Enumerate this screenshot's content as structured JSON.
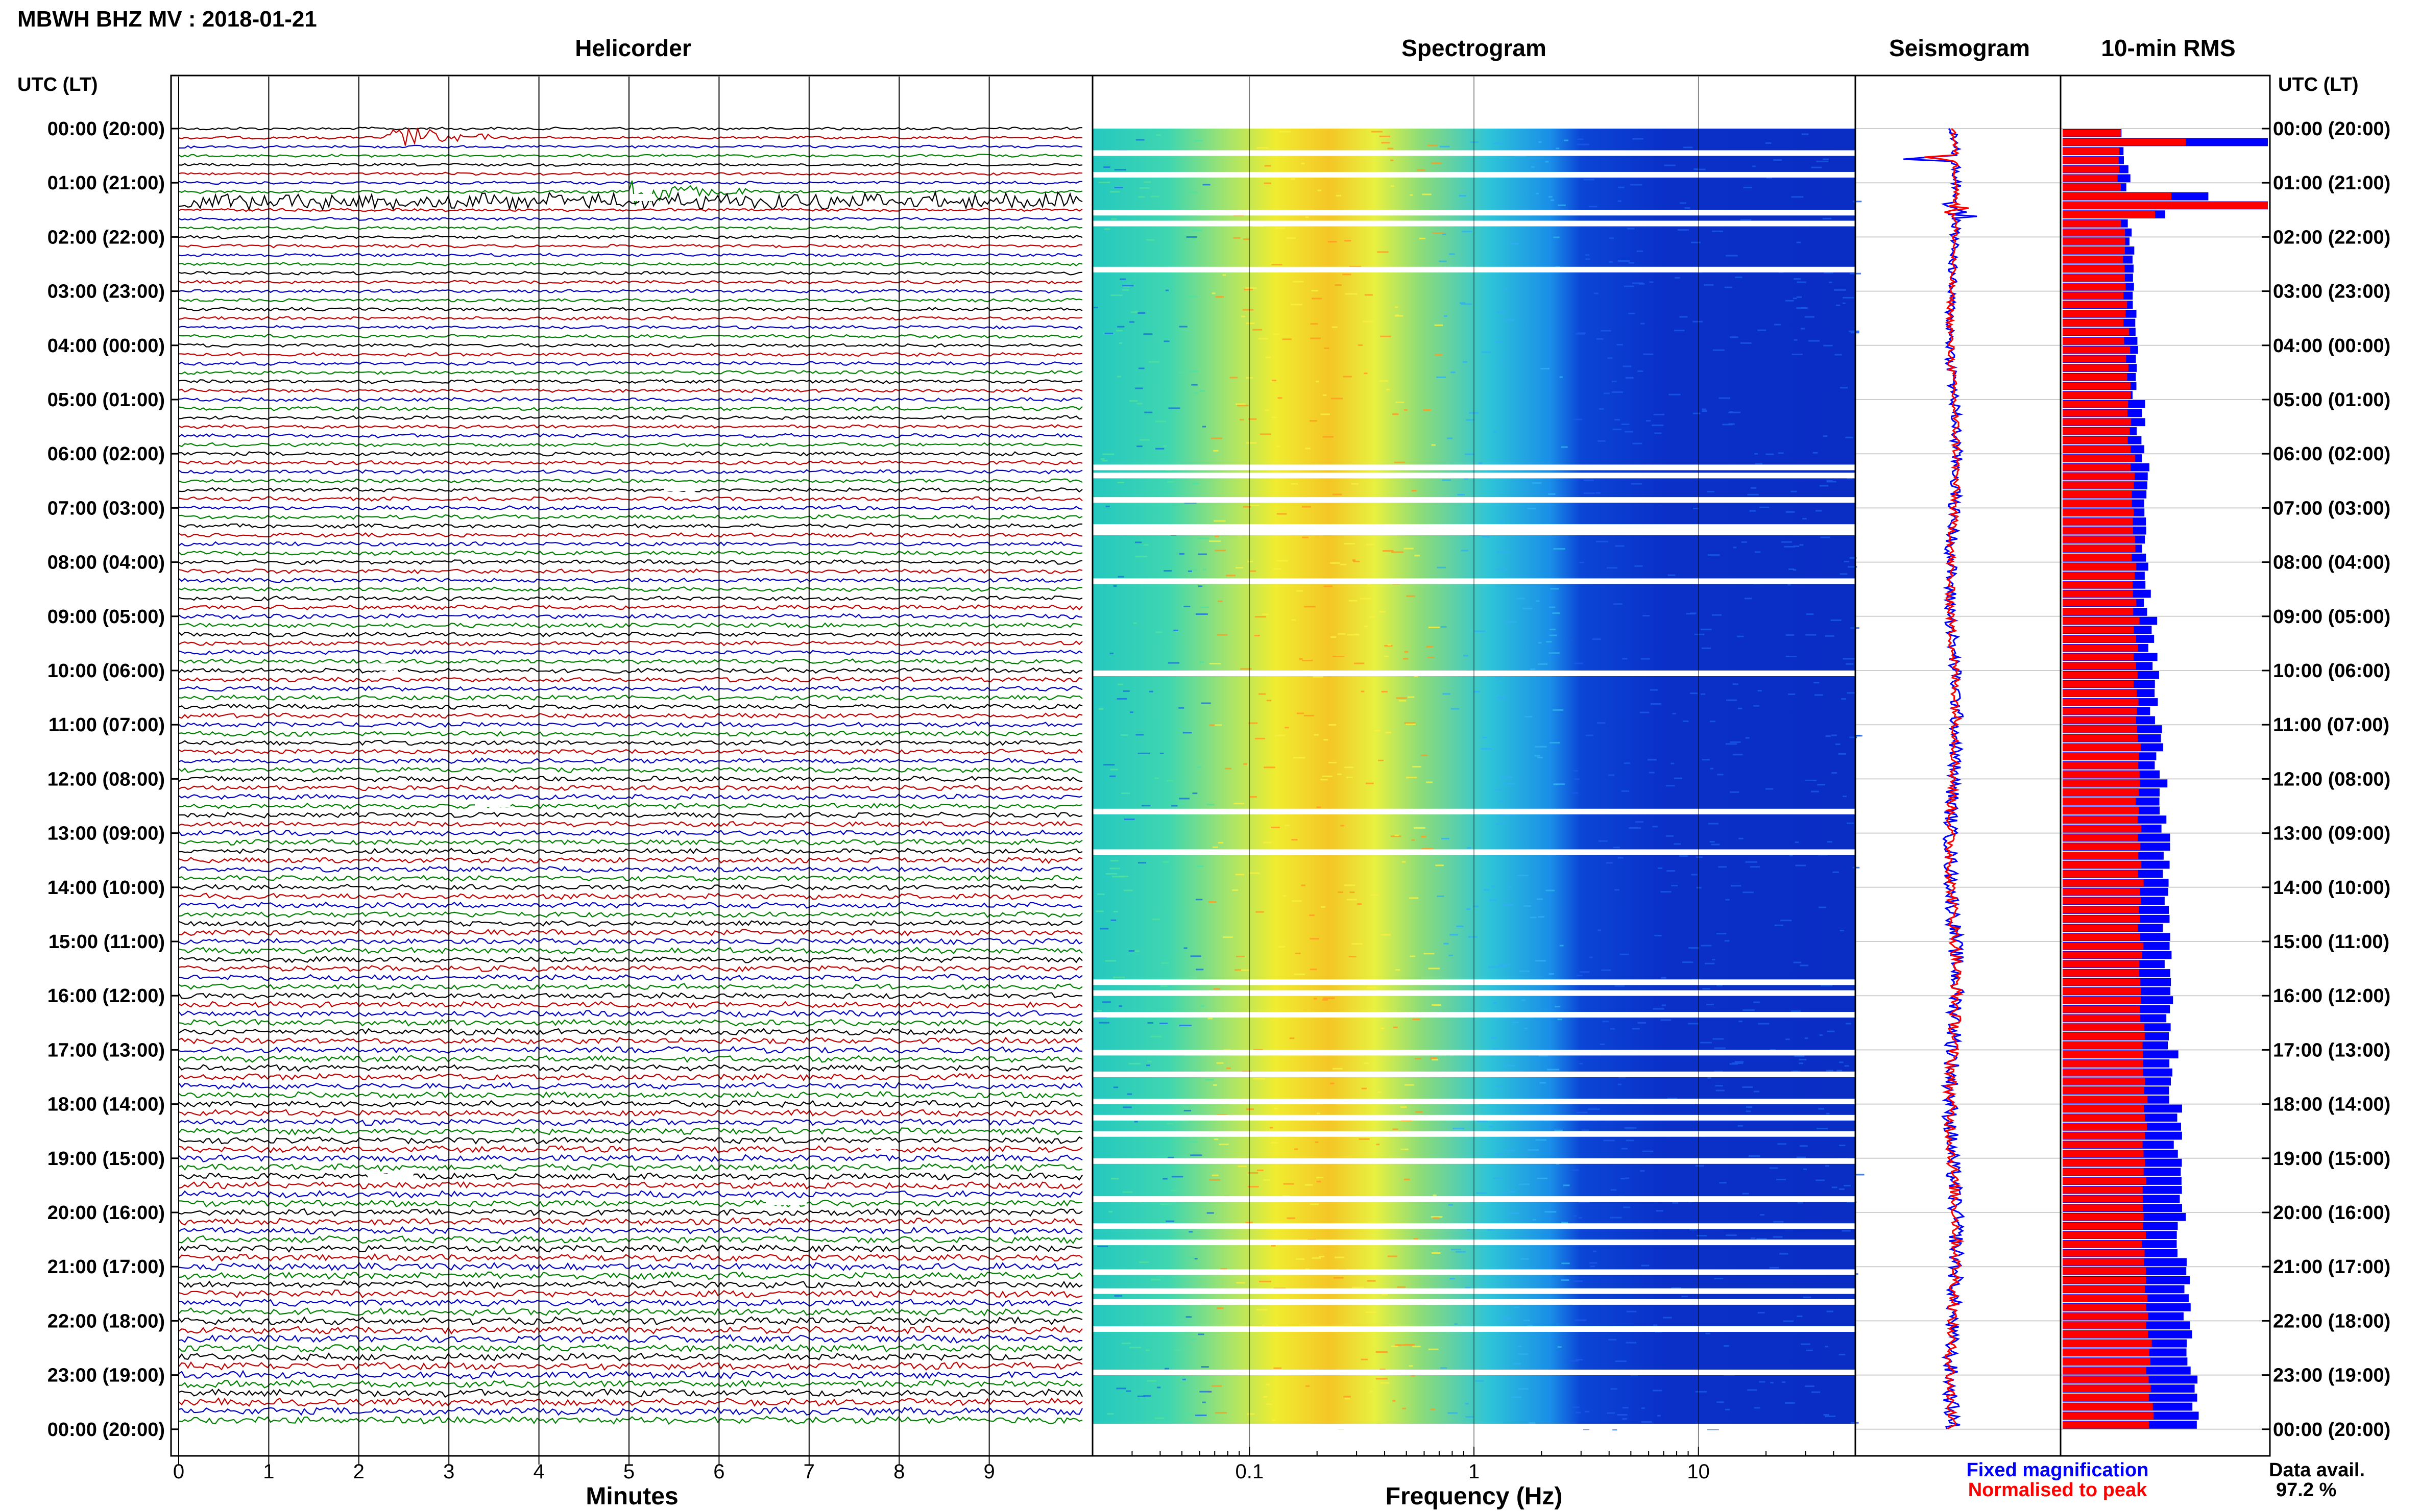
{
  "header": {
    "title": "MBWH BHZ MV : 2018-01-21"
  },
  "panels": {
    "helicorder": "Helicorder",
    "spectrogram": "Spectrogram",
    "seismogram": "Seismogram",
    "rms": "10-min RMS"
  },
  "time_axis": {
    "left_header": "UTC (LT)",
    "right_header": "UTC (LT)",
    "labels": [
      "00:00 (20:00)",
      "01:00 (21:00)",
      "02:00 (22:00)",
      "03:00 (23:00)",
      "04:00 (00:00)",
      "05:00 (01:00)",
      "06:00 (02:00)",
      "07:00 (03:00)",
      "08:00 (04:00)",
      "09:00 (05:00)",
      "10:00 (06:00)",
      "11:00 (07:00)",
      "12:00 (08:00)",
      "13:00 (09:00)",
      "14:00 (10:00)",
      "15:00 (11:00)",
      "16:00 (12:00)",
      "17:00 (13:00)",
      "18:00 (14:00)",
      "19:00 (15:00)",
      "20:00 (16:00)",
      "21:00 (17:00)",
      "22:00 (18:00)",
      "23:00 (19:00)",
      "00:00 (20:00)"
    ]
  },
  "footer": {
    "minutes_label": "Minutes",
    "frequency_label": "Frequency (Hz)",
    "legend_fixed": "Fixed magnification",
    "legend_normalised": "Normalised to peak",
    "data_avail_label": "Data avail.",
    "data_avail_value": "97.2 %"
  },
  "colors": {
    "trace_cycle": [
      "#000000",
      "#c00000",
      "#0000c0",
      "#008000"
    ],
    "fixed": "#0000ff",
    "normalised": "#ff0000"
  },
  "chart_data": [
    {
      "type": "line",
      "title": "Helicorder",
      "xlabel": "Minutes",
      "xlim": [
        0,
        10
      ],
      "x_ticks": [
        "0",
        "1",
        "2",
        "3",
        "4",
        "5",
        "6",
        "7",
        "8",
        "9"
      ],
      "rows_per_hour": 6,
      "row_count": 144,
      "events": [
        {
          "hour": 0,
          "row_in_hour": 1,
          "minute_start": 2.3,
          "minute_end": 3.5,
          "color": "#008000"
        },
        {
          "hour": 1,
          "row_in_hour": 2,
          "minute_start": 0.0,
          "minute_end": 10.0,
          "color": "#000000"
        },
        {
          "hour": 1,
          "row_in_hour": 1,
          "minute_start": 5.0,
          "minute_end": 6.3,
          "color": "#008000"
        }
      ]
    },
    {
      "type": "heatmap",
      "title": "Spectrogram",
      "xlabel": "Frequency (Hz)",
      "x_scale": "log",
      "xlim": [
        0.02,
        50
      ],
      "x_ticks": [
        "0.1",
        "1",
        "10"
      ],
      "peak_band_hz": [
        0.15,
        0.6
      ],
      "colormap": "jet"
    },
    {
      "type": "line",
      "title": "Seismogram",
      "series": [
        {
          "name": "Fixed magnification",
          "values": [
            1.6,
            1.5,
            1.5,
            1.6,
            1.8,
            1.9,
            2.0,
            2.0,
            2.1,
            2.1,
            2.2,
            2.2,
            2.3,
            2.3,
            2.4,
            2.5,
            2.6,
            2.7,
            2.6,
            2.6,
            2.5,
            2.5,
            2.4,
            2.5,
            2.6
          ]
        },
        {
          "name": "Normalised to peak",
          "values": [
            1.2,
            1.1,
            1.1,
            1.2,
            1.4,
            1.5,
            1.6,
            1.6,
            1.7,
            1.7,
            1.8,
            1.8,
            1.9,
            1.9,
            2.0,
            2.1,
            2.2,
            2.3,
            2.2,
            2.2,
            2.1,
            2.1,
            2.0,
            2.1,
            2.2
          ]
        }
      ]
    },
    {
      "type": "bar",
      "title": "10-min RMS",
      "x_max": 1.0,
      "series": [
        {
          "name": "Fixed magnification",
          "values": [
            0.31,
            0.32,
            0.33,
            0.34,
            0.36,
            0.38,
            0.4,
            0.41,
            0.42,
            0.44,
            0.45,
            0.47,
            0.49,
            0.5,
            0.5,
            0.51,
            0.52,
            0.54,
            0.56,
            0.58,
            0.58,
            0.6,
            0.62,
            0.65
          ]
        },
        {
          "name": "Normalised to peak",
          "values": [
            0.28,
            0.29,
            0.3,
            0.31,
            0.32,
            0.33,
            0.34,
            0.35,
            0.35,
            0.36,
            0.36,
            0.37,
            0.37,
            0.38,
            0.38,
            0.38,
            0.39,
            0.4,
            0.4,
            0.4,
            0.4,
            0.41,
            0.42,
            0.43
          ]
        }
      ],
      "spikes": [
        {
          "hour": 0,
          "row_in_hour": 1,
          "fixed": 1.0,
          "normalised": 0.6
        },
        {
          "hour": 1,
          "row_in_hour": 1,
          "fixed": 0.71,
          "normalised": 0.53
        },
        {
          "hour": 1,
          "row_in_hour": 2,
          "fixed": 1.0,
          "normalised": 1.0
        },
        {
          "hour": 1,
          "row_in_hour": 3,
          "fixed": 0.5,
          "normalised": 0.45
        }
      ]
    }
  ]
}
